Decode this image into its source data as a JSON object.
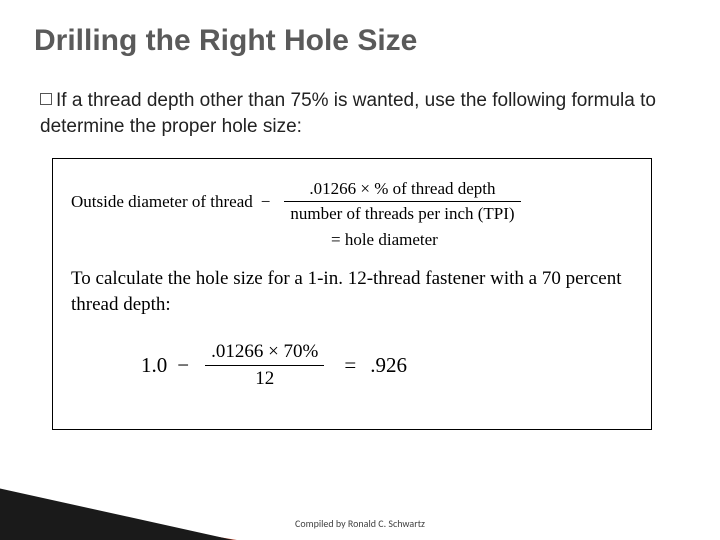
{
  "title": {
    "text": "Drilling the Right Hole Size",
    "color": "#5a5a5a",
    "fontsize": 30,
    "weight": "bold"
  },
  "body": {
    "bullet_glyph": "□",
    "text": "If a thread depth other than 75% is wanted, use the following formula to determine the proper hole size:"
  },
  "formula1": {
    "lhs": "Outside diameter of thread",
    "minus": "−",
    "numerator": ".01266 × % of thread depth",
    "denominator": "number of threads per inch (TPI)",
    "eq_rhs": "= hole diameter"
  },
  "explain": "To calculate the hole size for a 1-in. 12-thread fastener with a 70 percent thread depth:",
  "formula2": {
    "lhs": "1.0",
    "minus": "−",
    "numerator": ".01266 × 70%",
    "denominator": "12",
    "eq": "=",
    "rhs": ".926"
  },
  "footer": "Compiled by Ronald C. Schwartz",
  "decor": {
    "dark": "#1a1a1a",
    "red": "#b43319",
    "orange": "#e79a4a"
  }
}
